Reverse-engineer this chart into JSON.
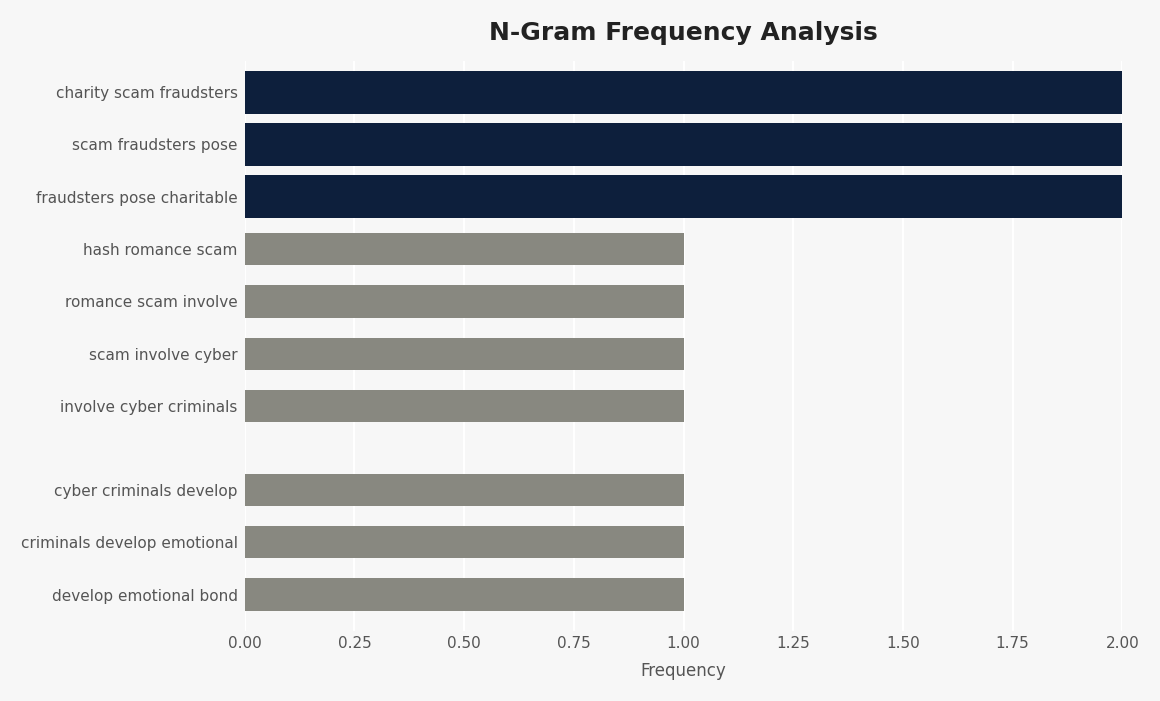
{
  "title": "N-Gram Frequency Analysis",
  "xlabel": "Frequency",
  "categories": [
    "develop emotional bond",
    "criminals develop emotional",
    "cyber criminals develop",
    "involve cyber criminals",
    "scam involve cyber",
    "romance scam involve",
    "hash romance scam",
    "fraudsters pose charitable",
    "scam fraudsters pose",
    "charity scam fraudsters"
  ],
  "values": [
    1,
    1,
    1,
    1,
    1,
    1,
    1,
    2,
    2,
    2
  ],
  "bar_colors": [
    "#888880",
    "#888880",
    "#888880",
    "#888880",
    "#888880",
    "#888880",
    "#888880",
    "#0d1f3c",
    "#0d1f3c",
    "#0d1f3c"
  ],
  "xlim": [
    0,
    2.0
  ],
  "xticks": [
    0.0,
    0.25,
    0.5,
    0.75,
    1.0,
    1.25,
    1.5,
    1.75,
    2.0
  ],
  "xtick_labels": [
    "0.00",
    "0.25",
    "0.50",
    "0.75",
    "1.00",
    "1.25",
    "1.50",
    "1.75",
    "2.00"
  ],
  "background_color": "#f7f7f7",
  "plot_bg_color": "#ffffff",
  "title_fontsize": 18,
  "label_fontsize": 12,
  "tick_fontsize": 11,
  "dark_bar_height": 0.82,
  "gray_bar_height": 0.62,
  "y_positions": [
    0,
    1,
    2,
    3.6,
    4.6,
    5.6,
    6.6,
    7.6,
    8.6,
    9.6
  ],
  "grid_color": "#e8e8e8",
  "label_color": "#555555"
}
